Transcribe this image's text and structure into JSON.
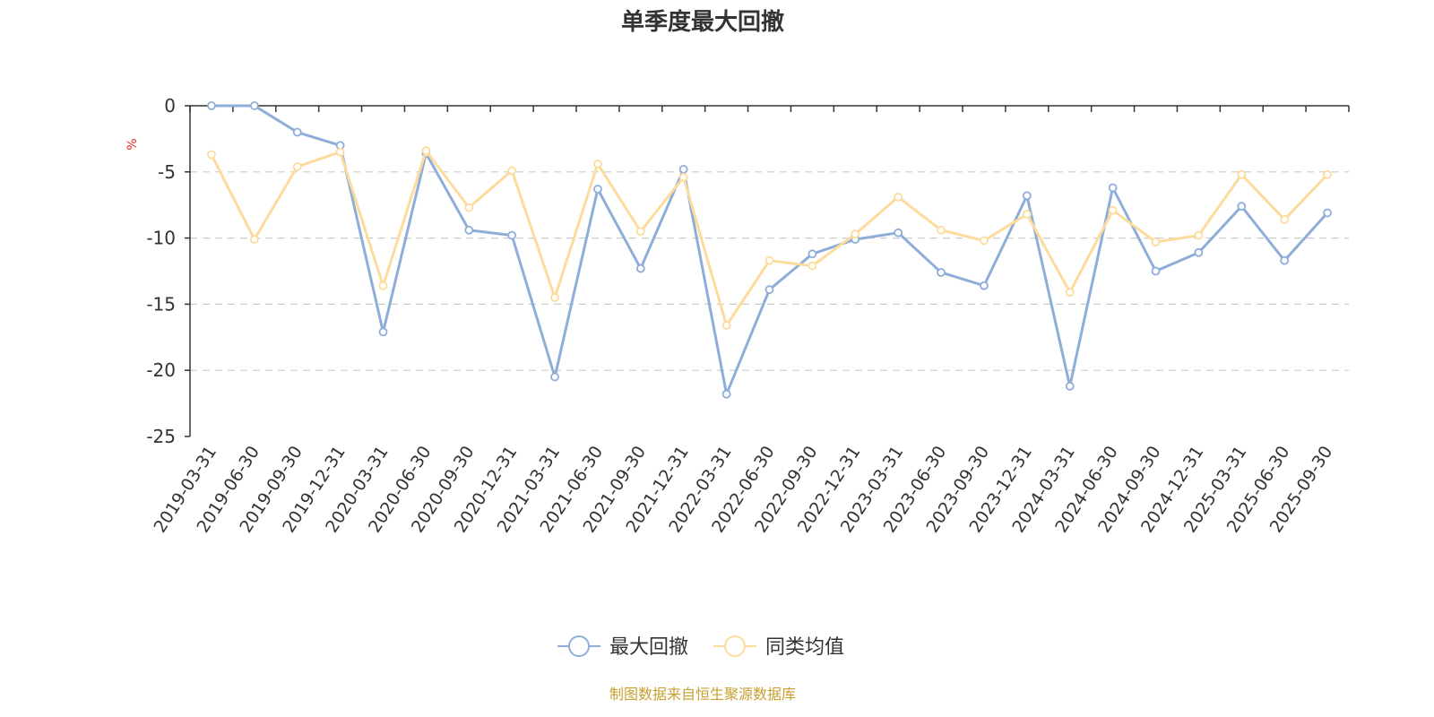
{
  "chart_data": {
    "type": "line",
    "title": "单季度最大回撤",
    "ylabel": "%",
    "ylim": [
      -25,
      0
    ],
    "yticks": [
      0,
      -5,
      -10,
      -15,
      -20,
      -25
    ],
    "grid": true,
    "legend_position": "bottom-center",
    "categories": [
      "2019-03-31",
      "2019-06-30",
      "2019-09-30",
      "2019-12-31",
      "2020-03-31",
      "2020-06-30",
      "2020-09-30",
      "2020-12-31",
      "2021-03-31",
      "2021-06-30",
      "2021-09-30",
      "2021-12-31",
      "2022-03-31",
      "2022-06-30",
      "2022-09-30",
      "2022-12-31",
      "2023-03-31",
      "2023-06-30",
      "2023-09-30",
      "2023-12-31",
      "2024-03-31",
      "2024-06-30",
      "2024-09-30",
      "2024-12-31",
      "2025-03-31",
      "2025-06-30",
      "2025-09-30"
    ],
    "series": [
      {
        "name": "最大回撤",
        "color": "#8eadd9",
        "values": [
          0,
          0,
          -2.0,
          -3.0,
          -17.1,
          -3.6,
          -9.4,
          -9.8,
          -20.5,
          -6.3,
          -12.3,
          -4.8,
          -21.8,
          -13.9,
          -11.2,
          -10.1,
          -9.6,
          -12.6,
          -13.6,
          -6.8,
          -21.2,
          -6.2,
          -12.5,
          -11.1,
          -7.6,
          -11.7,
          -8.1
        ]
      },
      {
        "name": "同类均值",
        "color": "#fddb9c",
        "values": [
          -3.7,
          -10.1,
          -4.6,
          -3.5,
          -13.6,
          -3.4,
          -7.7,
          -4.9,
          -14.5,
          -4.4,
          -9.5,
          -5.4,
          -16.6,
          -11.7,
          -12.1,
          -9.7,
          -6.9,
          -9.4,
          -10.2,
          -8.2,
          -14.1,
          -7.9,
          -10.3,
          -9.8,
          -5.2,
          -8.6,
          -5.2
        ]
      }
    ]
  },
  "source_text": "制图数据来自恒生聚源数据库",
  "colors": {
    "axis": "#333333",
    "grid": "#cccccc",
    "unit": "#e52b2b",
    "source": "#c8a030"
  }
}
